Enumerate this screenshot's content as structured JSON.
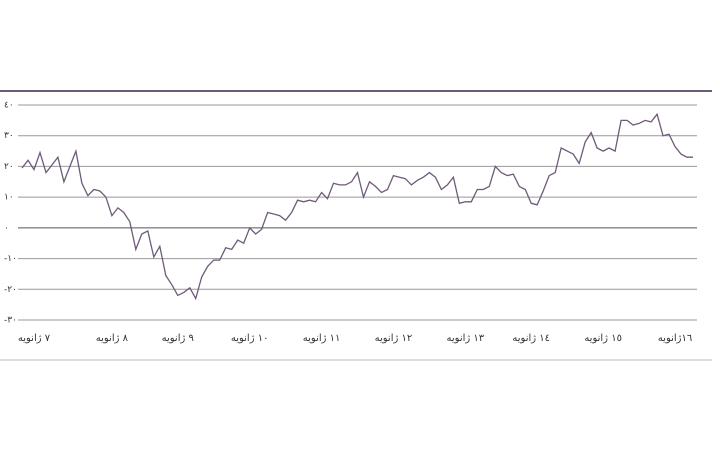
{
  "chart_data": {
    "type": "line",
    "color": "#6f5a7a",
    "grid": true,
    "categories": [
      null,
      null,
      "٧ ژانویه",
      null,
      null,
      null,
      null,
      null,
      null,
      null,
      null,
      null,
      null,
      null,
      null,
      "٨ ژانویه",
      null,
      null,
      null,
      null,
      null,
      null,
      null,
      null,
      null,
      null,
      "٩ ژانویه",
      null,
      null,
      null,
      null,
      null,
      null,
      null,
      null,
      null,
      null,
      null,
      "١٠ ژانویه",
      null,
      null,
      null,
      null,
      null,
      null,
      null,
      null,
      null,
      null,
      null,
      "١١ ژانویه",
      null,
      null,
      null,
      null,
      null,
      null,
      null,
      null,
      null,
      null,
      null,
      "١٢ ژانویه",
      null,
      null,
      null,
      null,
      null,
      null,
      null,
      null,
      null,
      null,
      null,
      "١٣ ژانویه",
      null,
      null,
      null,
      null,
      null,
      null,
      null,
      null,
      null,
      null,
      "١٤ ژانویه",
      null,
      null,
      null,
      null,
      null,
      null,
      null,
      null,
      null,
      null,
      null,
      "١٥ ژانویه",
      null,
      null,
      null,
      null,
      null,
      null,
      null,
      null,
      null,
      null,
      null,
      "١٦ژانویه",
      null,
      null,
      null
    ],
    "values": [
      19.5,
      22,
      19,
      24.5,
      18,
      20.5,
      23,
      15,
      20,
      25,
      14.5,
      10.5,
      12.5,
      12,
      10,
      4,
      6.5,
      5,
      2,
      -7,
      -2,
      -1,
      -9.5,
      -6,
      -15.5,
      -18.5,
      -22,
      -21,
      -19.5,
      -23,
      -16,
      -12.5,
      -10.5,
      -10.5,
      -6.5,
      -7,
      -4,
      -5,
      0,
      -2,
      -0.5,
      5,
      4.5,
      4,
      2.5,
      5,
      9,
      8.5,
      9,
      8.5,
      11.5,
      9.5,
      14.5,
      14,
      14,
      15,
      18,
      10,
      15,
      13.5,
      11.5,
      12.5,
      17,
      16.5,
      16,
      14,
      15.5,
      16.5,
      18,
      16.5,
      12.5,
      14,
      16.5,
      8,
      8.5,
      8.5,
      12.5,
      12.5,
      13.5,
      20,
      18,
      17,
      17.5,
      13.5,
      12.5,
      8,
      7.5,
      12,
      17,
      18,
      26,
      25,
      24,
      21,
      28,
      31,
      26,
      25,
      26,
      25,
      35,
      35,
      33.5,
      34,
      35,
      34.5,
      37,
      30,
      30.5,
      26.5,
      24,
      23,
      23
    ],
    "ylim": [
      -30,
      40
    ],
    "yticks": [
      {
        "value": -30,
        "label": "-٣٠"
      },
      {
        "value": -20,
        "label": "-٢٠"
      },
      {
        "value": -10,
        "label": "-١٠"
      },
      {
        "value": 0,
        "label": "٠"
      },
      {
        "value": 10,
        "label": "١٠"
      },
      {
        "value": 20,
        "label": "٢٠"
      },
      {
        "value": 30,
        "label": "٣٠"
      },
      {
        "value": 40,
        "label": "٤٠"
      }
    ]
  }
}
